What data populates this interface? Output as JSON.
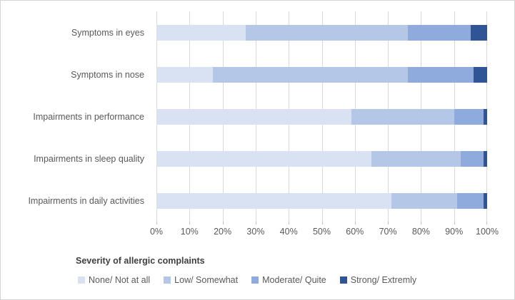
{
  "chart_data": {
    "type": "bar",
    "orientation": "horizontal",
    "stacked": true,
    "title": "",
    "categories": [
      "Symptoms in eyes",
      "Symptoms in nose",
      "Impairments in performance",
      "Impairments in sleep quality",
      "Impairments in daily activities"
    ],
    "series": [
      {
        "name": "None/ Not at all",
        "color": "#D9E2F3",
        "values": [
          27,
          17,
          59,
          65,
          71
        ]
      },
      {
        "name": "Low/ Somewhat",
        "color": "#B4C7E7",
        "values": [
          49,
          59,
          31,
          27,
          20
        ]
      },
      {
        "name": "Moderate/ Quite",
        "color": "#8FAADC",
        "values": [
          19,
          20,
          9,
          7,
          8
        ]
      },
      {
        "name": "Strong/ Extremly",
        "color": "#2F5597",
        "values": [
          5,
          4,
          1,
          1,
          1
        ]
      }
    ],
    "xlim": [
      0,
      100
    ],
    "x_tick_labels": [
      "0%",
      "10%",
      "20%",
      "30%",
      "40%",
      "50%",
      "60%",
      "70%",
      "80%",
      "90%",
      "100%"
    ],
    "grid": "vertical",
    "gridline_color": "#D9D9D9",
    "legend_position": "bottom",
    "legend_title": "Severity of allergic complaints"
  },
  "colors": {
    "background": "#FFFFFF",
    "border": "#D4D4D4",
    "axis_text": "#595959",
    "category_text": "#595959",
    "legend_title_text": "#3F3F3F"
  }
}
